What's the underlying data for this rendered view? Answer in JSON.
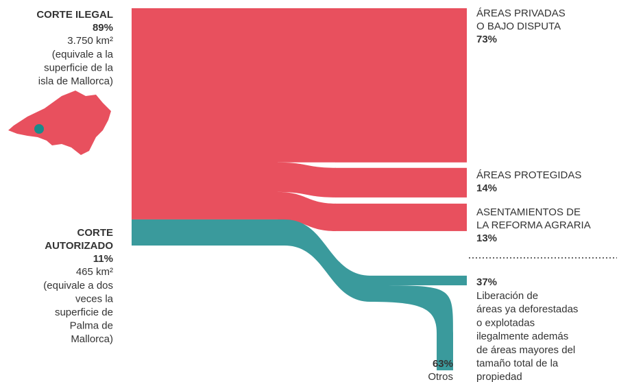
{
  "chart_data": {
    "type": "sankey",
    "sources": [
      {
        "name": [
          "CORTE ILEGAL"
        ],
        "value": 89,
        "value_label": "89%",
        "area": "3.750 km²",
        "note": [
          "(equivale a la",
          "superficie de la",
          "isla de Mallorca)"
        ],
        "color": "#e8505e",
        "label_color": "#c8102e",
        "targets": [
          {
            "name": [
              "ÁREAS PRIVADAS",
              "O BAJO DISPUTA"
            ],
            "value": 73,
            "value_label": "73%"
          },
          {
            "name": [
              "ÁREAS PROTEGIDAS"
            ],
            "value": 14,
            "value_label": "14%"
          },
          {
            "name": [
              "ASENTAMIENTOS DE",
              "LA REFORMA AGRARIA"
            ],
            "value": 13,
            "value_label": "13%"
          }
        ]
      },
      {
        "name": [
          "CORTE",
          "AUTORIZADO"
        ],
        "value": 11,
        "value_label": "11%",
        "area": "465 km²",
        "note": [
          "(equivale a dos",
          "veces la",
          "superficie de",
          "Palma de",
          "Mallorca)"
        ],
        "color": "#3a9a9c",
        "label_color": "#1a8a8a",
        "targets": [
          {
            "name": [
              "Liberación de",
              "áreas ya deforestadas",
              "o explotadas",
              "ilegalmente además",
              "de áreas mayores del",
              "tamaño total de la",
              "propiedad"
            ],
            "value": 37,
            "value_label": "37%"
          },
          {
            "name": [
              "Otros"
            ],
            "value": 63,
            "value_label": "63%"
          }
        ]
      }
    ]
  }
}
